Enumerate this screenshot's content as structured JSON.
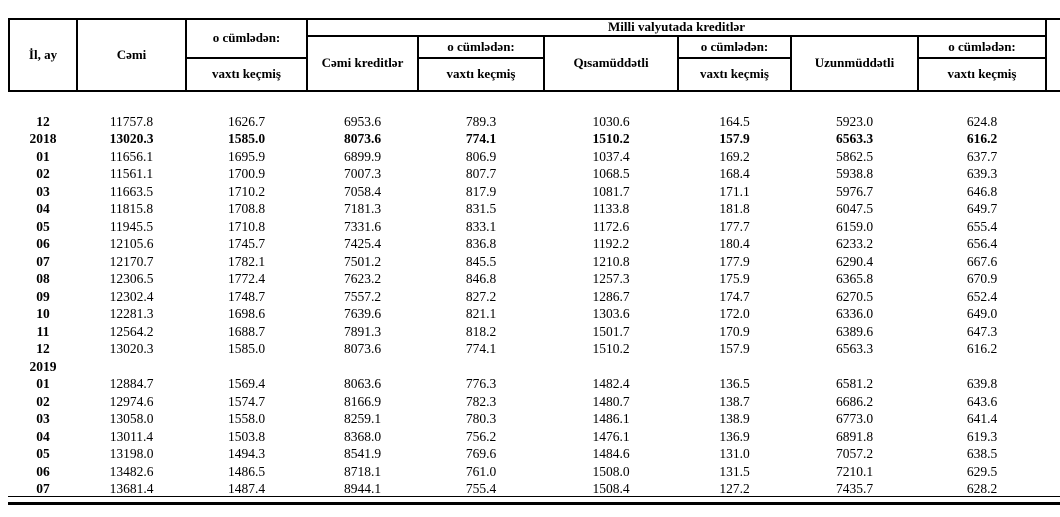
{
  "table": {
    "header": {
      "col_il_ay": "İl, ay",
      "col_cemi": "Cəmi",
      "o_cumleden": "o cümlədən:",
      "vaxti_kecmis": "vaxtı keçmiş",
      "milli_group": "Milli valyutada  kreditlər",
      "col_cemi_kreditler": "Cəmi kreditlər",
      "col_qisamuddetli": "Qısamüddətli",
      "col_uzunmuddetli": "Uzunmüddətli"
    },
    "rows": [
      {
        "label": "12",
        "bold": false,
        "values": [
          "11757.8",
          "1626.7",
          "6953.6",
          "789.3",
          "1030.6",
          "164.5",
          "5923.0",
          "624.8"
        ]
      },
      {
        "label": "2018",
        "bold": true,
        "values": [
          "13020.3",
          "1585.0",
          "8073.6",
          "774.1",
          "1510.2",
          "157.9",
          "6563.3",
          "616.2"
        ]
      },
      {
        "label": "01",
        "bold": false,
        "values": [
          "11656.1",
          "1695.9",
          "6899.9",
          "806.9",
          "1037.4",
          "169.2",
          "5862.5",
          "637.7"
        ]
      },
      {
        "label": "02",
        "bold": false,
        "values": [
          "11561.1",
          "1700.9",
          "7007.3",
          "807.7",
          "1068.5",
          "168.4",
          "5938.8",
          "639.3"
        ]
      },
      {
        "label": "03",
        "bold": false,
        "values": [
          "11663.5",
          "1710.2",
          "7058.4",
          "817.9",
          "1081.7",
          "171.1",
          "5976.7",
          "646.8"
        ]
      },
      {
        "label": "04",
        "bold": false,
        "values": [
          "11815.8",
          "1708.8",
          "7181.3",
          "831.5",
          "1133.8",
          "181.8",
          "6047.5",
          "649.7"
        ]
      },
      {
        "label": "05",
        "bold": false,
        "values": [
          "11945.5",
          "1710.8",
          "7331.6",
          "833.1",
          "1172.6",
          "177.7",
          "6159.0",
          "655.4"
        ]
      },
      {
        "label": "06",
        "bold": false,
        "values": [
          "12105.6",
          "1745.7",
          "7425.4",
          "836.8",
          "1192.2",
          "180.4",
          "6233.2",
          "656.4"
        ]
      },
      {
        "label": "07",
        "bold": false,
        "values": [
          "12170.7",
          "1782.1",
          "7501.2",
          "845.5",
          "1210.8",
          "177.9",
          "6290.4",
          "667.6"
        ]
      },
      {
        "label": "08",
        "bold": false,
        "values": [
          "12306.5",
          "1772.4",
          "7623.2",
          "846.8",
          "1257.3",
          "175.9",
          "6365.8",
          "670.9"
        ]
      },
      {
        "label": "09",
        "bold": false,
        "values": [
          "12302.4",
          "1748.7",
          "7557.2",
          "827.2",
          "1286.7",
          "174.7",
          "6270.5",
          "652.4"
        ]
      },
      {
        "label": "10",
        "bold": false,
        "values": [
          "12281.3",
          "1698.6",
          "7639.6",
          "821.1",
          "1303.6",
          "172.0",
          "6336.0",
          "649.0"
        ]
      },
      {
        "label": "11",
        "bold": false,
        "values": [
          "12564.2",
          "1688.7",
          "7891.3",
          "818.2",
          "1501.7",
          "170.9",
          "6389.6",
          "647.3"
        ]
      },
      {
        "label": "12",
        "bold": false,
        "values": [
          "13020.3",
          "1585.0",
          "8073.6",
          "774.1",
          "1510.2",
          "157.9",
          "6563.3",
          "616.2"
        ]
      },
      {
        "label": "2019",
        "bold": true,
        "values": [
          "",
          "",
          "",
          "",
          "",
          "",
          "",
          ""
        ]
      },
      {
        "label": "01",
        "bold": false,
        "values": [
          "12884.7",
          "1569.4",
          "8063.6",
          "776.3",
          "1482.4",
          "136.5",
          "6581.2",
          "639.8"
        ]
      },
      {
        "label": "02",
        "bold": false,
        "values": [
          "12974.6",
          "1574.7",
          "8166.9",
          "782.3",
          "1480.7",
          "138.7",
          "6686.2",
          "643.6"
        ]
      },
      {
        "label": "03",
        "bold": false,
        "values": [
          "13058.0",
          "1558.0",
          "8259.1",
          "780.3",
          "1486.1",
          "138.9",
          "6773.0",
          "641.4"
        ]
      },
      {
        "label": "04",
        "bold": false,
        "values": [
          "13011.4",
          "1503.8",
          "8368.0",
          "756.2",
          "1476.1",
          "136.9",
          "6891.8",
          "619.3"
        ]
      },
      {
        "label": "05",
        "bold": false,
        "values": [
          "13198.0",
          "1494.3",
          "8541.9",
          "769.6",
          "1484.6",
          "131.0",
          "7057.2",
          "638.5"
        ]
      },
      {
        "label": "06",
        "bold": false,
        "values": [
          "13482.6",
          "1486.5",
          "8718.1",
          "761.0",
          "1508.0",
          "131.5",
          "7210.1",
          "629.5"
        ]
      },
      {
        "label": "07",
        "bold": false,
        "values": [
          "13681.4",
          "1487.4",
          "8944.1",
          "755.4",
          "1508.4",
          "127.2",
          "7435.7",
          "628.2"
        ]
      }
    ]
  }
}
